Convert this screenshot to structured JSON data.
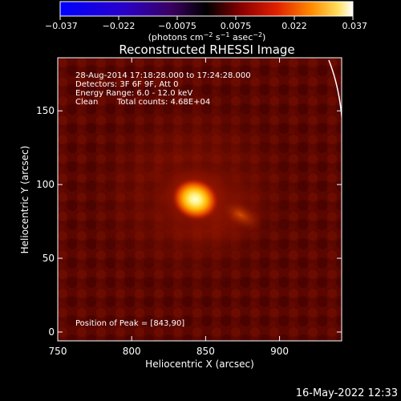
{
  "colorbar": {
    "ticks": [
      "−0.037",
      "−0.022",
      "−0.0075",
      "0.0075",
      "0.022",
      "0.037"
    ],
    "units_prefix": "(photons cm",
    "units_exp1": "−2",
    "units_mid": " s",
    "units_exp2": "−1",
    "units_mid2": " asec",
    "units_exp3": "−2",
    "units_suffix": ")",
    "min": -0.037,
    "max": 0.037,
    "colormap": "hot-with-blue-negative"
  },
  "chart_data": {
    "type": "heatmap",
    "title": "Reconstructed RHESSI Image",
    "xlabel": "Heliocentric X (arcsec)",
    "ylabel": "Heliocentric Y (arcsec)",
    "xlim": [
      750,
      942
    ],
    "ylim": [
      -6,
      186
    ],
    "x_ticks": [
      750,
      800,
      850,
      900
    ],
    "y_ticks": [
      0,
      50,
      100,
      150
    ],
    "peak": {
      "x": 843,
      "y": 90
    },
    "annotations": [
      "28-Aug-2014 17:18:28.000 to 17:24:28.000",
      "Detectors: 3F 6F 9F, Att 0",
      "Energy Range: 6.0 - 12.0 keV",
      "Clean",
      "Total counts: 4.68E+04",
      "Position of Peak = [843,90]"
    ]
  },
  "footer": {
    "timestamp": "16-May-2022 12:33"
  }
}
